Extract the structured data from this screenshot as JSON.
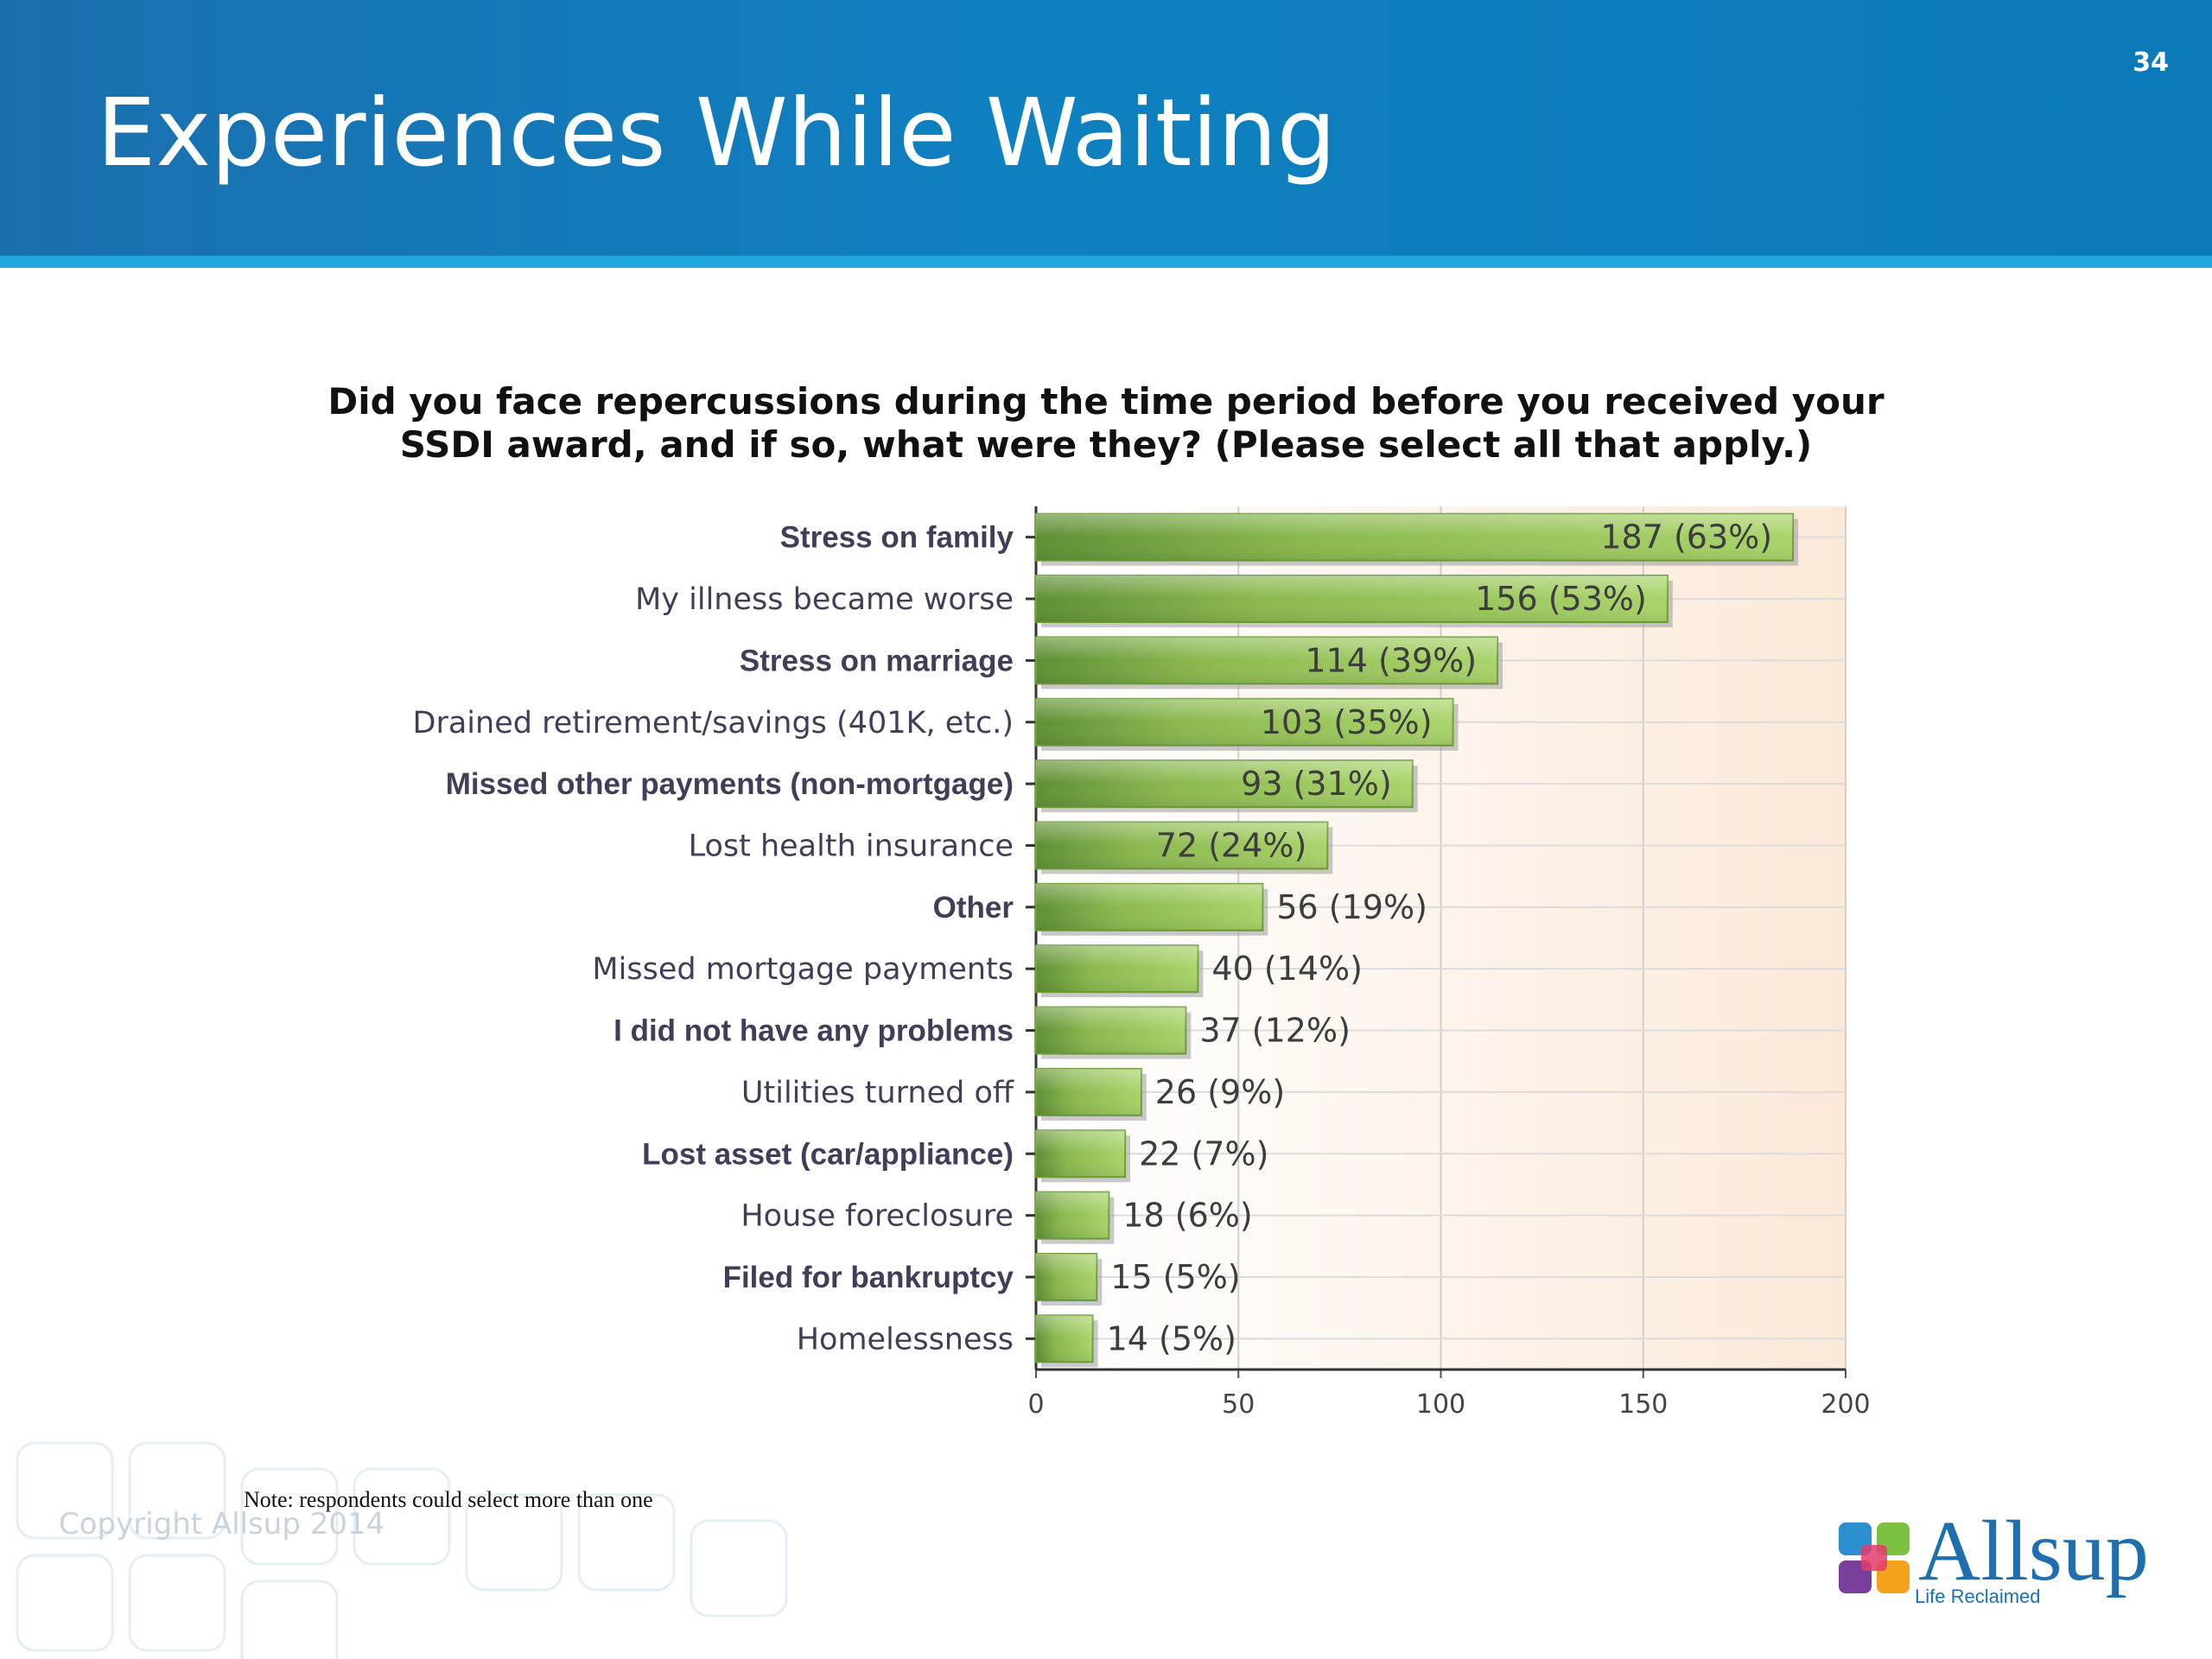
{
  "slide": {
    "title": "Experiences While Waiting",
    "page_number": "34",
    "question_line1": "Did you face repercussions during the time period before you received your",
    "question_line2": "SSDI award, and if so, what were they? (Please select all that apply.)",
    "note": "Note: respondents could select more than one",
    "copyright": "Copyright Allsup 2014",
    "logo_word": "Allsup",
    "logo_tagline": "Life Reclaimed"
  },
  "colors": {
    "header_blue": "#0f80c0",
    "bar_green": "#9ccc5e",
    "bar_dark_green": "#5f8f35",
    "plot_background": "#fcefe2",
    "label_text": "#3f3f5a"
  },
  "chart_data": {
    "type": "bar",
    "orientation": "horizontal",
    "title": "Did you face repercussions during the time period before you received your SSDI award, and if so, what were they? (Please select all that apply.)",
    "categories": [
      "Stress on family",
      "My illness became worse",
      "Stress on marriage",
      "Drained retirement/savings (401K, etc.)",
      "Missed other payments (non-mortgage)",
      "Lost health insurance",
      "Other",
      "Missed mortgage payments",
      "I did not have any problems",
      "Utilities turned off",
      "Lost asset (car/appliance)",
      "House foreclosure",
      "Filed for bankruptcy",
      "Homelessness"
    ],
    "values": [
      187,
      156,
      114,
      103,
      93,
      72,
      56,
      40,
      37,
      26,
      22,
      18,
      15,
      14
    ],
    "value_labels": [
      "187 (63%)",
      "156 (53%)",
      "114 (39%)",
      "103 (35%)",
      "93 (31%)",
      "72 (24%)",
      "56 (19%)",
      "40 (14%)",
      "37 (12%)",
      "26 (9%)",
      "22 (7%)",
      "18 (6%)",
      "15 (5%)",
      "14 (5%)"
    ],
    "bold_labels": [
      true,
      false,
      true,
      false,
      true,
      false,
      true,
      false,
      true,
      false,
      true,
      false,
      true,
      false
    ],
    "xlim": [
      0,
      200
    ],
    "x_ticks": [
      0,
      50,
      100,
      150,
      200
    ],
    "x_tick_labels": [
      "0",
      "50",
      "100",
      "150",
      "200"
    ],
    "grid": true
  }
}
